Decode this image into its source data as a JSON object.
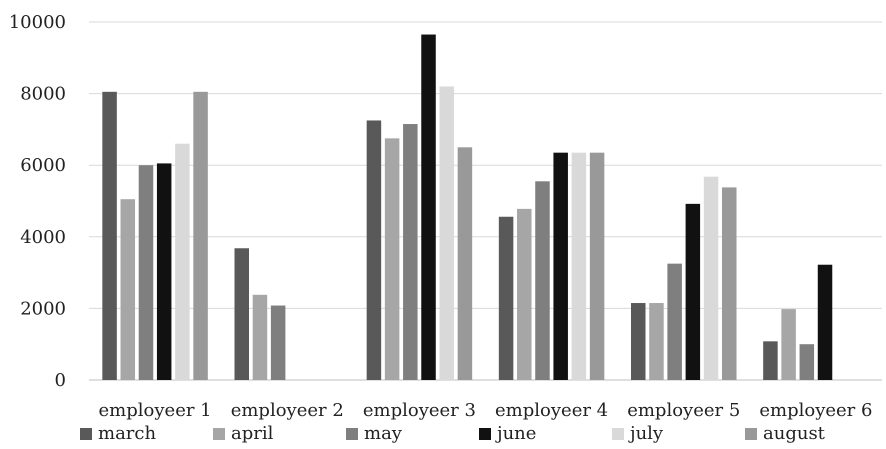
{
  "chart_data": {
    "type": "bar",
    "title": "",
    "xlabel": "",
    "ylabel": "",
    "ylim": [
      0,
      10000
    ],
    "yticks": [
      0,
      2000,
      4000,
      6000,
      8000,
      10000
    ],
    "grid": true,
    "legend_position": "bottom",
    "categories": [
      "employeer 1",
      "employeer 2",
      "employeer 3",
      "employeer 4",
      "employeer 5",
      "employeer 6"
    ],
    "series": [
      {
        "name": "march",
        "color": "#595959",
        "values": [
          8050,
          3680,
          7250,
          4560,
          2150,
          1080
        ]
      },
      {
        "name": "april",
        "color": "#a6a6a6",
        "values": [
          5050,
          2380,
          6750,
          4780,
          2150,
          1980
        ]
      },
      {
        "name": "may",
        "color": "#7f7f7f",
        "values": [
          6000,
          2080,
          7150,
          5550,
          3250,
          1000
        ]
      },
      {
        "name": "june",
        "color": "#111111",
        "values": [
          6050,
          0,
          9650,
          6350,
          4920,
          3220
        ]
      },
      {
        "name": "july",
        "color": "#d9d9d9",
        "values": [
          6600,
          0,
          8200,
          6350,
          5680,
          0
        ]
      },
      {
        "name": "august",
        "color": "#999999",
        "values": [
          8050,
          0,
          6500,
          6350,
          5380,
          0
        ]
      }
    ]
  }
}
